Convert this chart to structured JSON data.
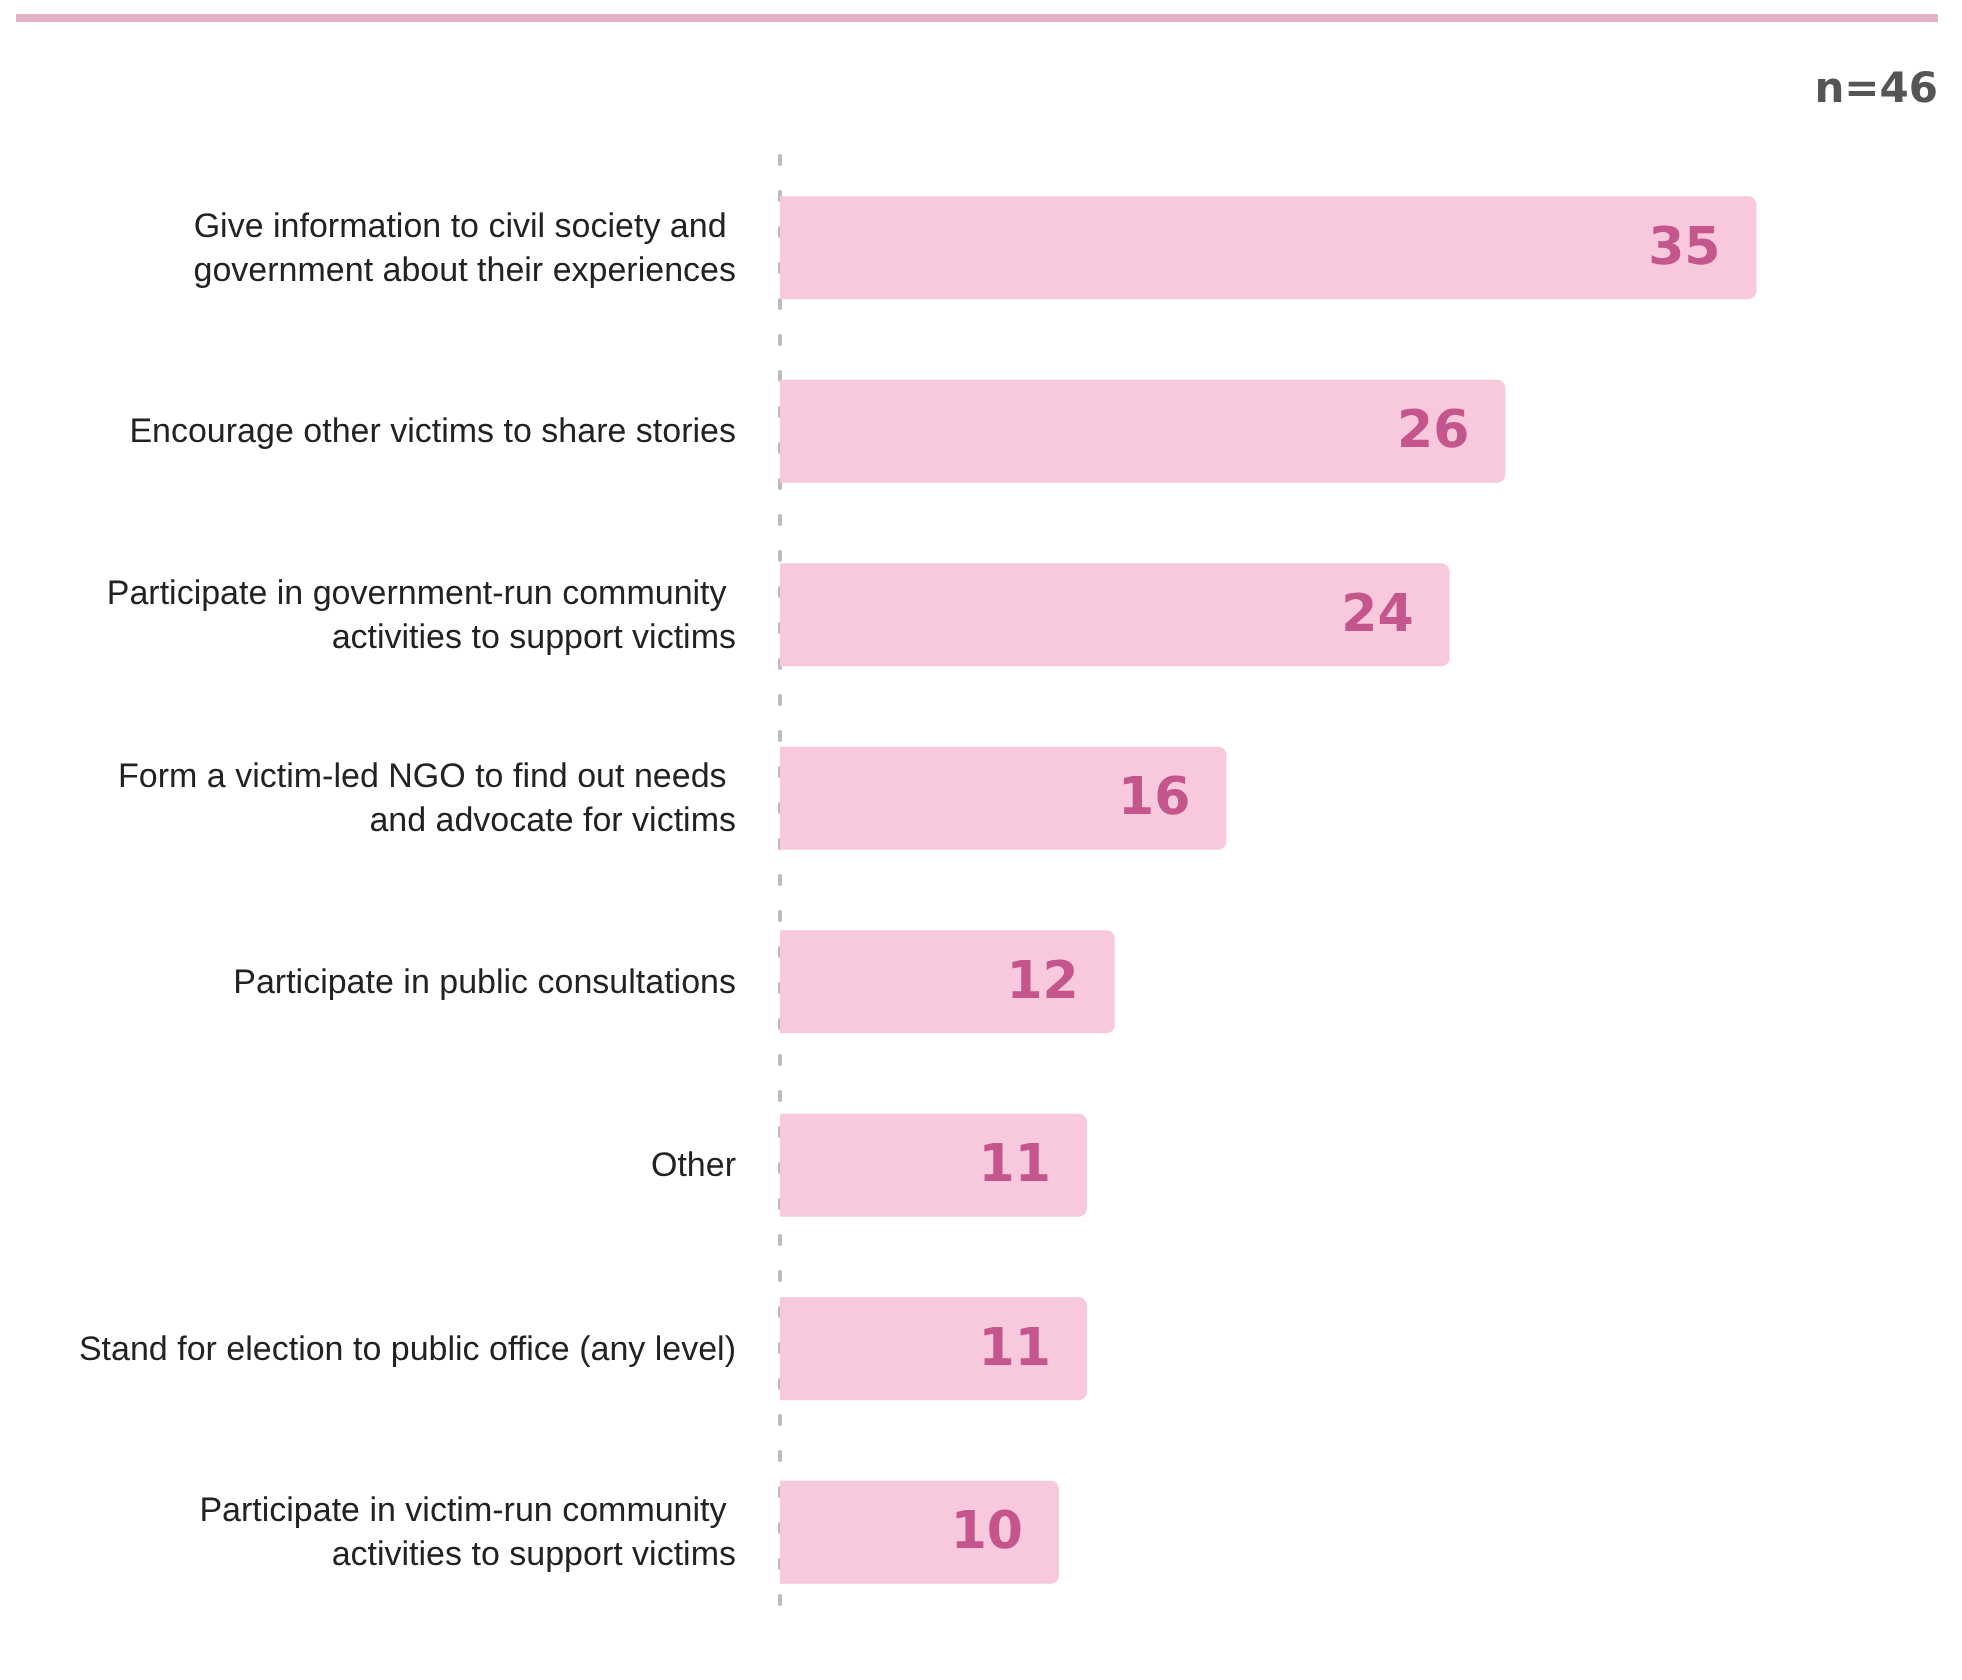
{
  "chart_data": {
    "type": "bar",
    "orientation": "horizontal",
    "categories": [
      "Give information to civil society and government about their experiences",
      "Encourage other victims to share stories",
      "Participate in government-run community activities to support victims",
      "Form a victim-led NGO to find out needs and advocate for victims",
      "Participate in public consultations",
      "Other",
      "Stand for election to public office (any level)",
      "Participate in victim-run community activities to support victims"
    ],
    "values": [
      35,
      26,
      24,
      16,
      12,
      11,
      11,
      10
    ],
    "color": "#f8c9dd",
    "data_labels": true,
    "tick_labels": "y",
    "grid": false,
    "annotations": [
      "n=46"
    ]
  }
}
